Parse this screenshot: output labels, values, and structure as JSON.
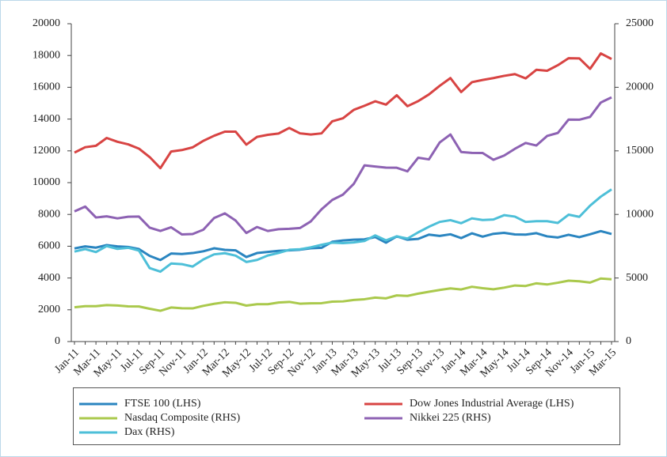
{
  "chart_data": {
    "type": "line",
    "categories": [
      "Jan-11",
      null,
      "Mar-11",
      null,
      "May-11",
      null,
      "Jul-11",
      null,
      "Sep-11",
      null,
      "Nov-11",
      null,
      "Jan-12",
      null,
      "Mar-12",
      null,
      "May-12",
      null,
      "Jul-12",
      null,
      "Sep-12",
      null,
      "Nov-12",
      null,
      "Jan-13",
      null,
      "Mar-13",
      null,
      "May-13",
      null,
      "Jul-13",
      null,
      "Sep-13",
      null,
      "Nov-13",
      null,
      "Jan-14",
      null,
      "Mar-14",
      null,
      "May-14",
      null,
      "Jul-14",
      null,
      "Sep-14",
      null,
      "Nov-14",
      null,
      "Jan-15",
      null,
      "Mar-15"
    ],
    "ylim": [
      0,
      20000
    ],
    "yticks": [
      0,
      2000,
      4000,
      6000,
      8000,
      10000,
      12000,
      14000,
      16000,
      18000,
      20000
    ],
    "y2lim": [
      0,
      25000
    ],
    "y2ticks": [
      0,
      5000,
      10000,
      15000,
      20000,
      25000
    ],
    "series": [
      {
        "name": "FTSE 100 (LHS)",
        "color": "#2a85c0",
        "values": [
          5860,
          5990,
          5910,
          6070,
          5990,
          5950,
          5820,
          5390,
          5130,
          5540,
          5510,
          5570,
          5680,
          5870,
          5770,
          5740,
          5320,
          5570,
          5640,
          5710,
          5740,
          5780,
          5870,
          5900,
          6280,
          6360,
          6410,
          6430,
          6580,
          6220,
          6620,
          6410,
          6460,
          6730,
          6650,
          6750,
          6510,
          6810,
          6600,
          6780,
          6840,
          6740,
          6730,
          6820,
          6620,
          6550,
          6720,
          6570,
          6750,
          6950,
          6770
        ]
      },
      {
        "name": "Dow Jones Industrial Average (LHS)",
        "color": "#d84443",
        "values": [
          11890,
          12230,
          12320,
          12810,
          12570,
          12410,
          12140,
          11610,
          10910,
          11960,
          12050,
          12220,
          12630,
          12950,
          13210,
          13210,
          12390,
          12880,
          13010,
          13090,
          13440,
          13100,
          13030,
          13100,
          13860,
          14050,
          14580,
          14840,
          15120,
          14910,
          15500,
          14810,
          15130,
          15550,
          16090,
          16580,
          15700,
          16320,
          16460,
          16580,
          16720,
          16830,
          16560,
          17100,
          17040,
          17390,
          17830,
          17820,
          17160,
          18130,
          17780
        ]
      },
      {
        "name": "Nasdaq Composite (RHS)",
        "color": "#aac94c",
        "axis": "y2",
        "values": [
          2700,
          2780,
          2780,
          2870,
          2840,
          2770,
          2760,
          2580,
          2420,
          2680,
          2620,
          2610,
          2810,
          2970,
          3090,
          3050,
          2830,
          2940,
          2940,
          3070,
          3120,
          2980,
          3010,
          3020,
          3140,
          3160,
          3270,
          3330,
          3460,
          3400,
          3630,
          3590,
          3770,
          3920,
          4060,
          4180,
          4100,
          4310,
          4200,
          4110,
          4240,
          4410,
          4370,
          4580,
          4490,
          4630,
          4790,
          4740,
          4640,
          4960,
          4900
        ]
      },
      {
        "name": "Nikkei 225 (RHS)",
        "color": "#8d62b3",
        "axis": "y2",
        "values": [
          10240,
          10620,
          9760,
          9850,
          9690,
          9820,
          9830,
          8960,
          8700,
          8990,
          8430,
          8460,
          8800,
          9720,
          10080,
          9520,
          8540,
          9010,
          8700,
          8840,
          8870,
          8930,
          9450,
          10400,
          11140,
          11560,
          12400,
          13860,
          13770,
          13680,
          13670,
          13390,
          14460,
          14330,
          15660,
          16290,
          14910,
          14840,
          14830,
          14300,
          14630,
          15160,
          15620,
          15420,
          16170,
          16410,
          17460,
          17450,
          17670,
          18800,
          19210
        ]
      },
      {
        "name": "Dax (RHS)",
        "color": "#4dbfd8",
        "axis": "y2",
        "values": [
          7080,
          7270,
          7040,
          7510,
          7290,
          7380,
          7160,
          5780,
          5500,
          6140,
          6090,
          5900,
          6460,
          6860,
          6950,
          6760,
          6260,
          6420,
          6770,
          6970,
          7220,
          7260,
          7410,
          7610,
          7780,
          7740,
          7800,
          7910,
          8350,
          7960,
          8280,
          8100,
          8590,
          9030,
          9410,
          9550,
          9310,
          9690,
          9560,
          9600,
          9940,
          9830,
          9410,
          9470,
          9470,
          9330,
          9980,
          9810,
          10690,
          11400,
          11970
        ]
      }
    ]
  }
}
